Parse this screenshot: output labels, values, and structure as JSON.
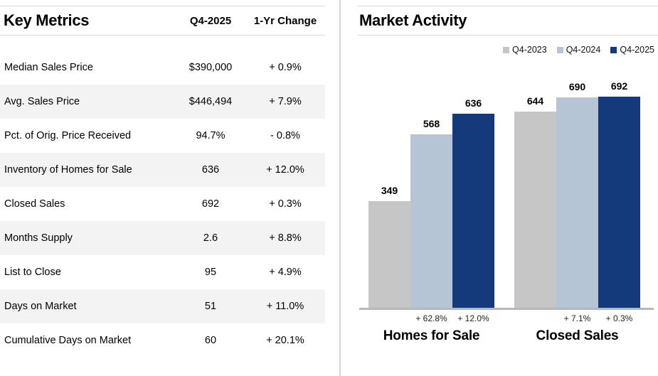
{
  "left_panel": {
    "title": "Key Metrics",
    "columns": [
      "Q4-2025",
      "1-Yr Change"
    ],
    "rows": [
      {
        "label": "Median Sales Price",
        "value": "$390,000",
        "change": "+ 0.9%"
      },
      {
        "label": "Avg. Sales Price",
        "value": "$446,494",
        "change": "+ 7.9%"
      },
      {
        "label": "Pct. of Orig. Price Received",
        "value": "94.7%",
        "change": "- 0.8%"
      },
      {
        "label": "Inventory of Homes for Sale",
        "value": "636",
        "change": "+ 12.0%"
      },
      {
        "label": "Closed Sales",
        "value": "692",
        "change": "+ 0.3%"
      },
      {
        "label": "Months Supply",
        "value": "2.6",
        "change": "+ 8.8%"
      },
      {
        "label": "List to Close",
        "value": "95",
        "change": "+ 4.9%"
      },
      {
        "label": "Days on Market",
        "value": "51",
        "change": "+ 11.0%"
      },
      {
        "label": "Cumulative Days on Market",
        "value": "60",
        "change": "+ 20.1%"
      }
    ]
  },
  "right_panel": {
    "title": "Market Activity",
    "legend": [
      {
        "label": "Q4-2023",
        "color": "#c6c6c6"
      },
      {
        "label": "Q4-2024",
        "color": "#b6c5d6"
      },
      {
        "label": "Q4-2025",
        "color": "#143a7c"
      }
    ]
  },
  "chart_data": {
    "type": "bar",
    "categories": [
      "Homes for Sale",
      "Closed Sales"
    ],
    "series": [
      {
        "name": "Q4-2023",
        "color": "#c6c6c6",
        "values": [
          349,
          644
        ]
      },
      {
        "name": "Q4-2024",
        "color": "#b6c5d6",
        "values": [
          568,
          690
        ]
      },
      {
        "name": "Q4-2025",
        "color": "#143a7c",
        "values": [
          636,
          692
        ]
      }
    ],
    "bar_value_labels": [
      [
        349,
        568,
        636
      ],
      [
        644,
        690,
        692
      ]
    ],
    "pct_changes": [
      [
        "+ 62.8%",
        "+ 12.0%"
      ],
      [
        "+ 7.1%",
        "+ 0.3%"
      ]
    ],
    "title": "Market Activity",
    "xlabel": "",
    "ylabel": "",
    "ylim": [
      0,
      700
    ],
    "grid": false,
    "legend_position": "top-right"
  },
  "colors": {
    "accent_navy": "#143a7c",
    "light_blue": "#b6c5d6",
    "bar_gray": "#c6c6c6",
    "row_alt": "#f3f3f3",
    "rule_line": "#dadada",
    "axis_line": "#b8b8b8"
  }
}
